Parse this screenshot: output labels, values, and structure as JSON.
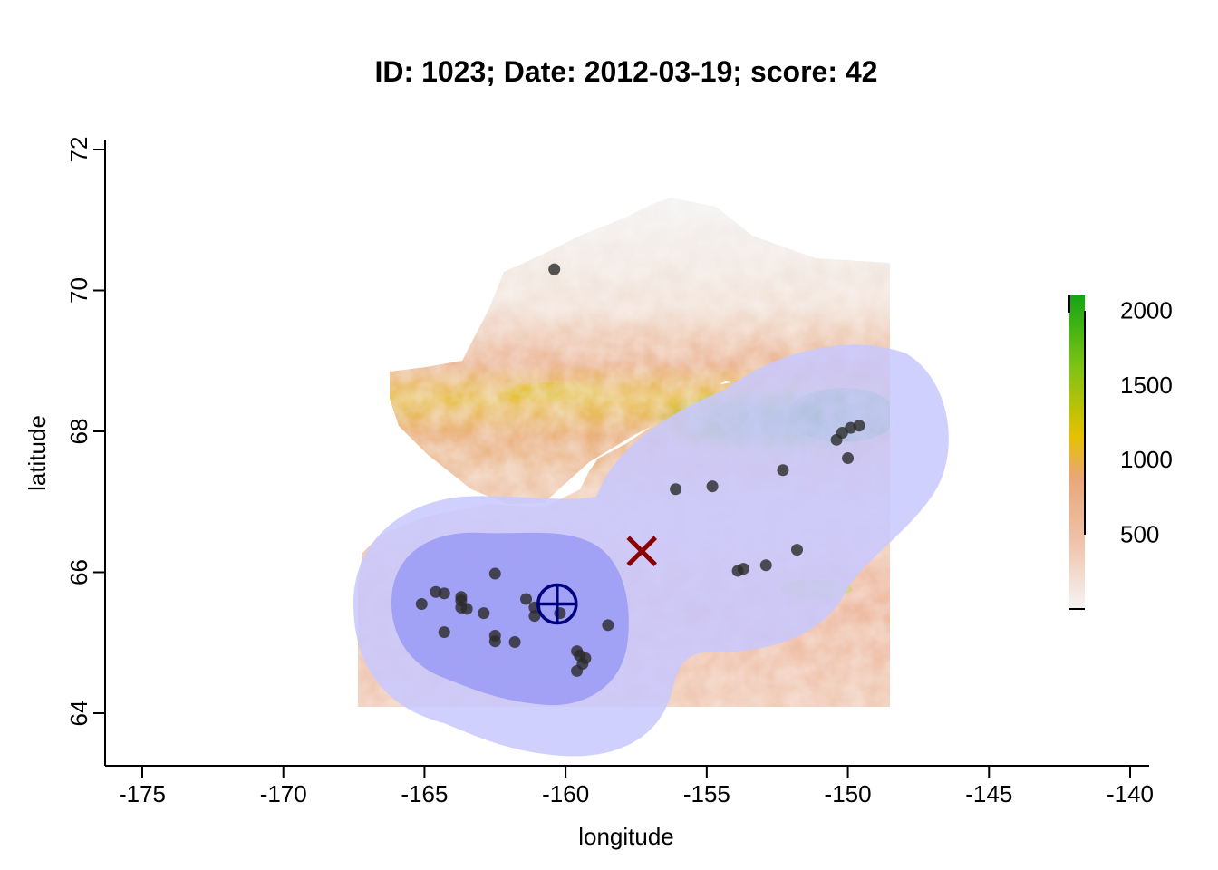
{
  "title": "ID: 1023;  Date: 2012-03-19;  score: 42",
  "chart_data": {
    "type": "scatter",
    "xlabel": "longitude",
    "ylabel": "latitude",
    "xlim": [
      -176.3,
      -139.5
    ],
    "ylim": [
      63.25,
      72.1
    ],
    "x_ticks": [
      -175,
      -170,
      -165,
      -160,
      -155,
      -150,
      -145,
      -140
    ],
    "y_ticks": [
      64,
      66,
      68,
      70,
      72
    ],
    "raster_extent": {
      "lon": [
        -167.4,
        -148.5
      ],
      "lat": [
        64.1,
        70.4
      ]
    },
    "colorbar": {
      "ticks": [
        500,
        1000,
        1500,
        2000
      ],
      "range": [
        0,
        2100
      ],
      "colors": [
        "#f5f5f5",
        "#efc1a8",
        "#e9a777",
        "#e6c100",
        "#7ac314",
        "#14a514"
      ]
    },
    "buffer_regions": [
      {
        "level": "outer",
        "color": "#c8c8ff",
        "centers": [
          [
            -161.5,
            65.6
          ],
          [
            -160.2,
            65.3
          ],
          [
            -156.0,
            66.2
          ],
          [
            -153.0,
            66.8
          ],
          [
            -150.3,
            68.0
          ]
        ]
      },
      {
        "level": "inner",
        "color": "#9c9cf5",
        "centers": [
          [
            -161.0,
            65.4
          ],
          [
            -163.0,
            65.6
          ]
        ]
      }
    ],
    "points": [
      [
        -160.4,
        70.3
      ],
      [
        -165.1,
        65.55
      ],
      [
        -164.6,
        65.72
      ],
      [
        -164.3,
        65.7
      ],
      [
        -163.7,
        65.65
      ],
      [
        -163.7,
        65.6
      ],
      [
        -163.7,
        65.5
      ],
      [
        -163.5,
        65.48
      ],
      [
        -162.9,
        65.42
      ],
      [
        -164.3,
        65.15
      ],
      [
        -162.5,
        65.98
      ],
      [
        -161.4,
        65.62
      ],
      [
        -161.1,
        65.5
      ],
      [
        -161.1,
        65.38
      ],
      [
        -160.2,
        65.42
      ],
      [
        -162.5,
        65.1
      ],
      [
        -162.5,
        65.02
      ],
      [
        -161.8,
        65.01
      ],
      [
        -159.6,
        64.88
      ],
      [
        -159.5,
        64.82
      ],
      [
        -159.3,
        64.78
      ],
      [
        -159.4,
        64.7
      ],
      [
        -159.6,
        64.6
      ],
      [
        -158.5,
        65.25
      ],
      [
        -156.1,
        67.18
      ],
      [
        -154.8,
        67.22
      ],
      [
        -152.3,
        67.45
      ],
      [
        -150.4,
        67.88
      ],
      [
        -150.2,
        67.98
      ],
      [
        -149.9,
        68.05
      ],
      [
        -149.6,
        68.08
      ],
      [
        -150.0,
        67.62
      ],
      [
        -153.9,
        66.02
      ],
      [
        -153.7,
        66.05
      ],
      [
        -152.9,
        66.1
      ],
      [
        -151.8,
        66.32
      ]
    ],
    "marker_estimate": {
      "label": "x",
      "lon": -157.3,
      "lat": 66.3,
      "color": "#8b0000"
    },
    "marker_truth": {
      "label": "circle-plus",
      "lon": -160.3,
      "lat": 65.55,
      "color": "#00007f"
    }
  }
}
